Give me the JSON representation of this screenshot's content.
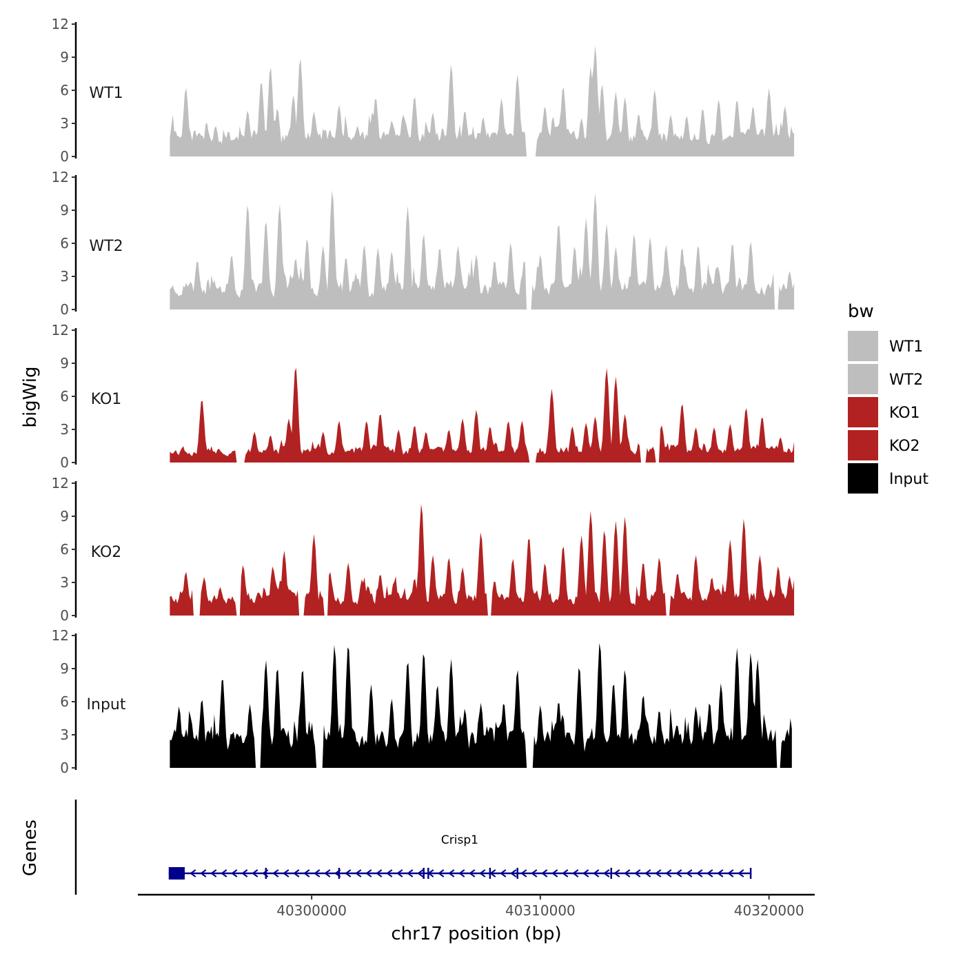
{
  "chart_data": {
    "type": "area",
    "title": "",
    "xlabel": "chr17 position (bp)",
    "ylabel": "bigWig",
    "genes_label": "Genes",
    "xlim": [
      40292400,
      40322000
    ],
    "x_range_data": [
      40293800,
      40321100
    ],
    "x_ticks": [
      40300000,
      40310000,
      40320000
    ],
    "x_tick_labels": [
      "40300000",
      "40310000",
      "40320000"
    ],
    "ylim": [
      0,
      12
    ],
    "y_ticks": [
      "0",
      "3",
      "6",
      "9",
      "12"
    ],
    "legend": {
      "title": "bw",
      "position": "right",
      "entries": [
        {
          "label": "WT1",
          "color": "#bebebe"
        },
        {
          "label": "WT2",
          "color": "#bebebe"
        },
        {
          "label": "KO1",
          "color": "#b22222"
        },
        {
          "label": "KO2",
          "color": "#b22222"
        },
        {
          "label": "Input",
          "color": "#000000"
        }
      ]
    },
    "series": [
      {
        "name": "WT1",
        "color": "#bebebe",
        "start": 40293800,
        "end": 40321100,
        "seed": 11,
        "base": 2.2,
        "spikes": [
          [
            40294500,
            6.3
          ],
          [
            40295800,
            2.8
          ],
          [
            40297200,
            4.2
          ],
          [
            40297800,
            6.9
          ],
          [
            40298200,
            8.2
          ],
          [
            40298500,
            4.4
          ],
          [
            40299200,
            5.6
          ],
          [
            40299500,
            9.0
          ],
          [
            40300100,
            4.1
          ],
          [
            40301200,
            4.7
          ],
          [
            40302000,
            2.8
          ],
          [
            40302800,
            5.4
          ],
          [
            40303500,
            3.3
          ],
          [
            40304000,
            3.8
          ],
          [
            40304500,
            5.5
          ],
          [
            40305300,
            4.0
          ],
          [
            40306100,
            8.4
          ],
          [
            40306700,
            4.2
          ],
          [
            40307500,
            3.6
          ],
          [
            40308300,
            5.3
          ],
          [
            40309000,
            7.5
          ],
          [
            40310200,
            4.6
          ],
          [
            40311000,
            6.4
          ],
          [
            40311800,
            3.5
          ],
          [
            40312200,
            8.2
          ],
          [
            40312400,
            10.1
          ],
          [
            40312700,
            6.6
          ],
          [
            40313300,
            5.9
          ],
          [
            40313700,
            5.4
          ],
          [
            40314300,
            3.9
          ],
          [
            40315000,
            6.1
          ],
          [
            40315700,
            3.8
          ],
          [
            40316400,
            3.7
          ],
          [
            40317100,
            4.4
          ],
          [
            40317800,
            5.2
          ],
          [
            40318600,
            5.2
          ],
          [
            40319300,
            4.6
          ],
          [
            40320000,
            6.2
          ],
          [
            40320700,
            4.6
          ]
        ],
        "gaps": [
          [
            40309400,
            40309800
          ]
        ]
      },
      {
        "name": "WT2",
        "color": "#bebebe",
        "start": 40293800,
        "end": 40321100,
        "seed": 23,
        "base": 2.4,
        "spikes": [
          [
            40295000,
            4.5
          ],
          [
            40296500,
            5.0
          ],
          [
            40297200,
            9.6
          ],
          [
            40298000,
            8.1
          ],
          [
            40298600,
            9.6
          ],
          [
            40299300,
            4.7
          ],
          [
            40299800,
            6.5
          ],
          [
            40300500,
            5.8
          ],
          [
            40300900,
            10.9
          ],
          [
            40301500,
            4.8
          ],
          [
            40302300,
            5.9
          ],
          [
            40302900,
            5.6
          ],
          [
            40303500,
            5.3
          ],
          [
            40304200,
            9.4
          ],
          [
            40304900,
            6.9
          ],
          [
            40305600,
            5.7
          ],
          [
            40306400,
            5.8
          ],
          [
            40307200,
            5.0
          ],
          [
            40308000,
            4.5
          ],
          [
            40308700,
            6.1
          ],
          [
            40309300,
            4.5
          ],
          [
            40310000,
            5.0
          ],
          [
            40310800,
            7.9
          ],
          [
            40311500,
            5.8
          ],
          [
            40312000,
            8.3
          ],
          [
            40312400,
            10.6
          ],
          [
            40312900,
            7.8
          ],
          [
            40313300,
            5.7
          ],
          [
            40314100,
            6.9
          ],
          [
            40314800,
            6.6
          ],
          [
            40315500,
            5.9
          ],
          [
            40316200,
            5.7
          ],
          [
            40316900,
            5.9
          ],
          [
            40317700,
            3.9
          ],
          [
            40318400,
            6.1
          ],
          [
            40319200,
            6.2
          ],
          [
            40320300,
            5.5
          ],
          [
            40320900,
            3.5
          ]
        ],
        "gaps": [
          [
            40309400,
            40309600
          ],
          [
            40320200,
            40320400
          ]
        ]
      },
      {
        "name": "KO1",
        "color": "#b22222",
        "start": 40293800,
        "end": 40321100,
        "seed": 37,
        "base": 1.3,
        "spikes": [
          [
            40295200,
            5.8
          ],
          [
            40297500,
            2.8
          ],
          [
            40298200,
            2.5
          ],
          [
            40299000,
            4.0
          ],
          [
            40299300,
            8.8
          ],
          [
            40300500,
            2.8
          ],
          [
            40301200,
            3.8
          ],
          [
            40302400,
            3.8
          ],
          [
            40303000,
            4.5
          ],
          [
            40303800,
            3.0
          ],
          [
            40304500,
            3.4
          ],
          [
            40305000,
            2.8
          ],
          [
            40306000,
            3.0
          ],
          [
            40306600,
            4.0
          ],
          [
            40307200,
            4.8
          ],
          [
            40307800,
            3.3
          ],
          [
            40308600,
            3.8
          ],
          [
            40309200,
            3.8
          ],
          [
            40310500,
            6.7
          ],
          [
            40311400,
            3.3
          ],
          [
            40312000,
            3.6
          ],
          [
            40312400,
            4.2
          ],
          [
            40312900,
            8.6
          ],
          [
            40313300,
            7.8
          ],
          [
            40313700,
            4.4
          ],
          [
            40314500,
            2.6
          ],
          [
            40315300,
            3.4
          ],
          [
            40316200,
            5.4
          ],
          [
            40316800,
            3.2
          ],
          [
            40317600,
            3.2
          ],
          [
            40318300,
            3.5
          ],
          [
            40319000,
            5.0
          ],
          [
            40319700,
            4.2
          ],
          [
            40320500,
            2.3
          ]
        ],
        "gaps": [
          [
            40296700,
            40297100
          ],
          [
            40309500,
            40309800
          ],
          [
            40314400,
            40314600
          ],
          [
            40315000,
            40315200
          ]
        ]
      },
      {
        "name": "KO2",
        "color": "#b22222",
        "start": 40293800,
        "end": 40321100,
        "seed": 53,
        "base": 2.0,
        "spikes": [
          [
            40294500,
            4.0
          ],
          [
            40295300,
            3.5
          ],
          [
            40296000,
            2.6
          ],
          [
            40297000,
            4.6
          ],
          [
            40298300,
            4.5
          ],
          [
            40298800,
            5.9
          ],
          [
            40300100,
            7.4
          ],
          [
            40300800,
            4.0
          ],
          [
            40301600,
            4.8
          ],
          [
            40302200,
            3.3
          ],
          [
            40303000,
            3.8
          ],
          [
            40303600,
            3.1
          ],
          [
            40304500,
            3.4
          ],
          [
            40304800,
            10.2
          ],
          [
            40305300,
            5.5
          ],
          [
            40306000,
            5.3
          ],
          [
            40306600,
            4.4
          ],
          [
            40307400,
            7.6
          ],
          [
            40308000,
            3.2
          ],
          [
            40308800,
            5.2
          ],
          [
            40309500,
            7.2
          ],
          [
            40310200,
            4.8
          ],
          [
            40311000,
            6.4
          ],
          [
            40311800,
            7.3
          ],
          [
            40312200,
            9.5
          ],
          [
            40312800,
            7.8
          ],
          [
            40313300,
            8.6
          ],
          [
            40313700,
            9.0
          ],
          [
            40314500,
            4.9
          ],
          [
            40315200,
            5.3
          ],
          [
            40316000,
            3.9
          ],
          [
            40316800,
            5.5
          ],
          [
            40317500,
            3.5
          ],
          [
            40318300,
            6.9
          ],
          [
            40318900,
            8.8
          ],
          [
            40319600,
            5.5
          ],
          [
            40320400,
            4.5
          ],
          [
            40320900,
            3.6
          ]
        ],
        "gaps": [
          [
            40294800,
            40295100
          ],
          [
            40296700,
            40296900
          ],
          [
            40299400,
            40299700
          ],
          [
            40300500,
            40300700
          ],
          [
            40307700,
            40307900
          ],
          [
            40315500,
            40315700
          ]
        ]
      },
      {
        "name": "Input",
        "color": "#000000",
        "start": 40293800,
        "end": 40321000,
        "seed": 71,
        "base": 3.3,
        "spikes": [
          [
            40294200,
            5.6
          ],
          [
            40295200,
            6.3
          ],
          [
            40296100,
            8.3
          ],
          [
            40297300,
            5.8
          ],
          [
            40298000,
            9.8
          ],
          [
            40298500,
            9.2
          ],
          [
            40299600,
            9.1
          ],
          [
            40300500,
            4.1
          ],
          [
            40301000,
            11.2
          ],
          [
            40301600,
            11.3
          ],
          [
            40302600,
            7.6
          ],
          [
            40303500,
            6.3
          ],
          [
            40304200,
            9.8
          ],
          [
            40304900,
            10.6
          ],
          [
            40305500,
            7.6
          ],
          [
            40306100,
            9.9
          ],
          [
            40306700,
            5.4
          ],
          [
            40307400,
            5.9
          ],
          [
            40308400,
            6.0
          ],
          [
            40309000,
            9.0
          ],
          [
            40310000,
            5.7
          ],
          [
            40310800,
            6.1
          ],
          [
            40311700,
            9.3
          ],
          [
            40312600,
            11.5
          ],
          [
            40313200,
            7.8
          ],
          [
            40313700,
            9.0
          ],
          [
            40314500,
            6.7
          ],
          [
            40315200,
            5.3
          ],
          [
            40316000,
            3.8
          ],
          [
            40316800,
            5.6
          ],
          [
            40317400,
            6.0
          ],
          [
            40317900,
            7.7
          ],
          [
            40318600,
            10.9
          ],
          [
            40319200,
            10.5
          ],
          [
            40319500,
            9.9
          ],
          [
            40320400,
            5.6
          ],
          [
            40320800,
            3.5
          ]
        ],
        "gaps": [
          [
            40297500,
            40297800
          ],
          [
            40300200,
            40300500
          ],
          [
            40309400,
            40309700
          ],
          [
            40320300,
            40320500
          ]
        ]
      }
    ],
    "gene": {
      "name": "Crisp1",
      "start": 40293750,
      "end": 40319200,
      "strand": "-",
      "color": "#00008b",
      "exons": [
        [
          40293750,
          40294450
        ]
      ],
      "introns_marks": [
        40298000,
        40301200,
        40304900,
        40305100,
        40307800,
        40309000,
        40313100,
        40319200
      ]
    }
  }
}
